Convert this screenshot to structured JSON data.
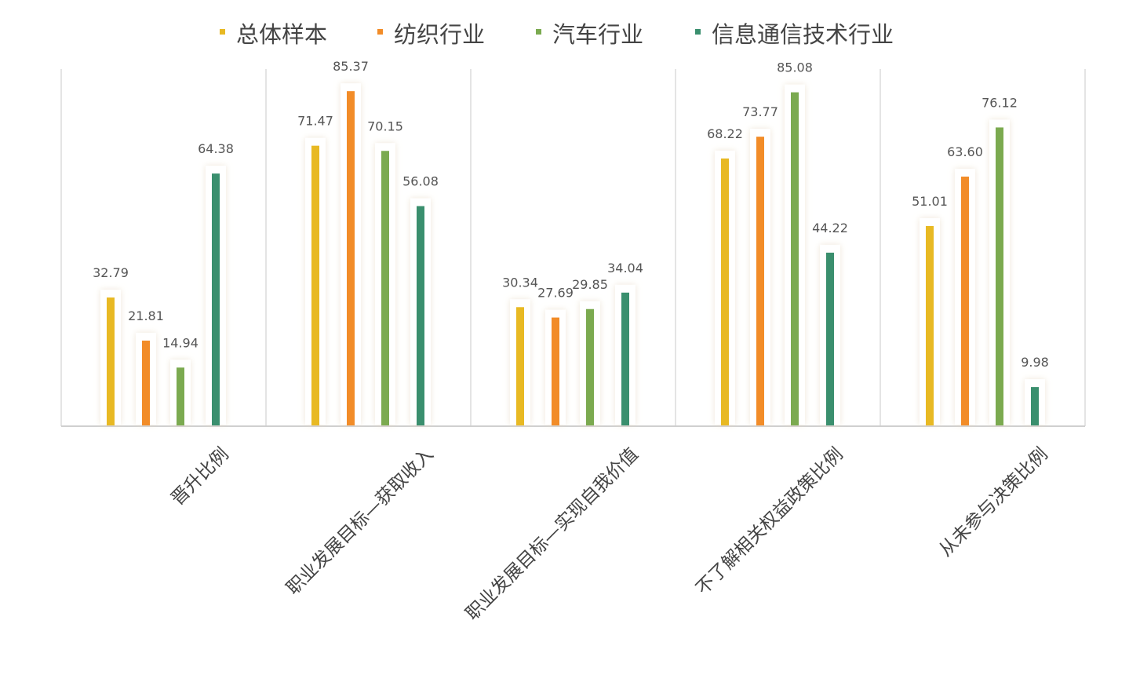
{
  "chart_data": {
    "type": "bar",
    "title": "",
    "xlabel": "",
    "ylabel": "",
    "ylim": [
      0,
      91
    ],
    "grid": false,
    "legend_placement": "top",
    "categories": [
      "晋升比例",
      "职业发展目标—获取收入",
      "职业发展目标—实现自我价值",
      "不了解相关权益政策比例",
      "从未参与决策比例"
    ],
    "series": [
      {
        "name": "总体样本",
        "color": "#E8B923",
        "values": [
          32.79,
          71.47,
          30.34,
          68.22,
          51.01
        ]
      },
      {
        "name": "纺织行业",
        "color": "#F28C28",
        "values": [
          21.81,
          85.37,
          27.69,
          73.77,
          63.6
        ]
      },
      {
        "name": "汽车行业",
        "color": "#7BAA50",
        "values": [
          14.94,
          70.15,
          29.85,
          85.08,
          76.12
        ]
      },
      {
        "name": "信息通信技术行业",
        "color": "#3A8F6E",
        "values": [
          64.38,
          56.08,
          34.04,
          44.22,
          9.98
        ]
      }
    ],
    "value_labels": [
      [
        "32.79",
        "71.47",
        "30.34",
        "68.22",
        "51.01"
      ],
      [
        "21.81",
        "85.37",
        "27.69",
        "73.77",
        "63.60"
      ],
      [
        "14.94",
        "70.15",
        "29.85",
        "85.08",
        "76.12"
      ],
      [
        "64.38",
        "56.08",
        "34.04",
        "44.22",
        "9.98"
      ]
    ]
  }
}
